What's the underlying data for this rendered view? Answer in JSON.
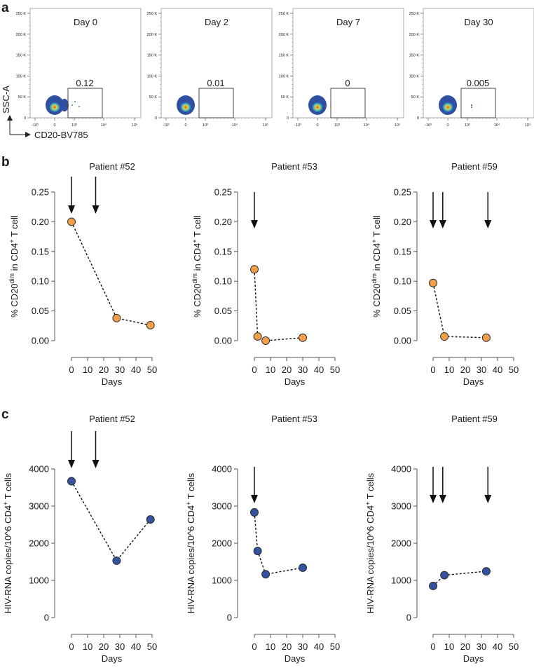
{
  "panel_labels": {
    "a": "a",
    "b": "b",
    "c": "c"
  },
  "panel_a": {
    "y_axis_label": "SSC-A",
    "x_axis_label": "CD20-BV785",
    "y_ticks": [
      "0",
      "50 K",
      "100 K",
      "150 K",
      "200 K",
      "250 K"
    ],
    "x_ticks": [
      "-10³",
      "0",
      "10³",
      "10⁴",
      "10⁵"
    ],
    "plots": [
      {
        "title": "Day 0",
        "gate_value": "0.12"
      },
      {
        "title": "Day 2",
        "gate_value": "0.01"
      },
      {
        "title": "Day 7",
        "gate_value": "0"
      },
      {
        "title": "Day 30",
        "gate_value": "0.005"
      }
    ],
    "colors": {
      "outer": "#2f4fa0",
      "mid": "#3fb6c8",
      "inner": "#e6d33a",
      "core": "#d9401f"
    }
  },
  "chart_data": [
    {
      "type": "line",
      "panel": "b",
      "title": "Patient #52",
      "xlabel": "Days",
      "ylabel_parts": [
        [
          "% CD20",
          false
        ],
        [
          "dim",
          true
        ],
        [
          " in CD4",
          false
        ],
        [
          "+",
          true
        ],
        [
          " T cell",
          false
        ]
      ],
      "xlim": [
        0,
        50
      ],
      "ylim": [
        0,
        0.25
      ],
      "x_ticks": [
        "0",
        "10",
        "20",
        "30",
        "40",
        "50"
      ],
      "y_ticks": [
        "0.00",
        "0.05",
        "0.10",
        "0.15",
        "0.20",
        "0.25"
      ],
      "x": [
        0,
        28,
        49
      ],
      "y": [
        0.2,
        0.038,
        0.026
      ],
      "arrows_days": [
        0,
        15
      ],
      "marker_color": "#f0a04b"
    },
    {
      "type": "line",
      "panel": "b",
      "title": "Patient #53",
      "xlabel": "Days",
      "ylabel_parts": [
        [
          "% CD20",
          false
        ],
        [
          "dim",
          true
        ],
        [
          " in CD4",
          false
        ],
        [
          "+",
          true
        ],
        [
          " T cell",
          false
        ]
      ],
      "xlim": [
        0,
        50
      ],
      "ylim": [
        0,
        0.25
      ],
      "x_ticks": [
        "0",
        "10",
        "20",
        "30",
        "40",
        "50"
      ],
      "y_ticks": [
        "0.00",
        "0.05",
        "0.10",
        "0.15",
        "0.20",
        "0.25"
      ],
      "x": [
        0,
        2,
        7,
        30
      ],
      "y": [
        0.12,
        0.007,
        0.0,
        0.005
      ],
      "arrows_days": [
        0
      ],
      "marker_color": "#f0a04b"
    },
    {
      "type": "line",
      "panel": "b",
      "title": "Patient #59",
      "xlabel": "Days",
      "ylabel_parts": [
        [
          "% CD20",
          false
        ],
        [
          "dim",
          true
        ],
        [
          " in CD4",
          false
        ],
        [
          "+",
          true
        ],
        [
          " T cell",
          false
        ]
      ],
      "xlim": [
        0,
        50
      ],
      "ylim": [
        0,
        0.25
      ],
      "x_ticks": [
        "0",
        "10",
        "20",
        "30",
        "40",
        "50"
      ],
      "y_ticks": [
        "0.00",
        "0.05",
        "0.10",
        "0.15",
        "0.20",
        "0.25"
      ],
      "x": [
        0,
        7,
        33
      ],
      "y": [
        0.097,
        0.007,
        0.005
      ],
      "arrows_days": [
        0,
        6,
        34
      ],
      "marker_color": "#f0a04b"
    },
    {
      "type": "line",
      "panel": "c",
      "title": "Patient #52",
      "xlabel": "Days",
      "ylabel_parts": [
        [
          "HIV-RNA copies/10^6 CD4",
          false
        ],
        [
          "+",
          true
        ],
        [
          " T cells",
          false
        ]
      ],
      "xlim": [
        0,
        50
      ],
      "ylim": [
        0,
        4000
      ],
      "x_ticks": [
        "0",
        "10",
        "20",
        "30",
        "40",
        "50"
      ],
      "y_ticks": [
        "0",
        "1000",
        "2000",
        "3000",
        "4000"
      ],
      "x": [
        0,
        28,
        49
      ],
      "y": [
        3670,
        1530,
        2640
      ],
      "arrows_days": [
        0,
        15
      ],
      "marker_color": "#34529e"
    },
    {
      "type": "line",
      "panel": "c",
      "title": "Patient #53",
      "xlabel": "Days",
      "ylabel_parts": [
        [
          "HIV-RNA copies/10^6 CD4",
          false
        ],
        [
          "+",
          true
        ],
        [
          " T cells",
          false
        ]
      ],
      "xlim": [
        0,
        50
      ],
      "ylim": [
        0,
        4000
      ],
      "x_ticks": [
        "0",
        "10",
        "20",
        "30",
        "40",
        "50"
      ],
      "y_ticks": [
        "0",
        "1000",
        "2000",
        "3000",
        "4000"
      ],
      "x": [
        0,
        2,
        7,
        30
      ],
      "y": [
        2830,
        1790,
        1165,
        1340
      ],
      "arrows_days": [
        0
      ],
      "marker_color": "#34529e"
    },
    {
      "type": "line",
      "panel": "c",
      "title": "Patient #59",
      "xlabel": "Days",
      "ylabel_parts": [
        [
          "HIV-RNA copies/10^6 CD4",
          false
        ],
        [
          "+",
          true
        ],
        [
          " T cells",
          false
        ]
      ],
      "xlim": [
        0,
        50
      ],
      "ylim": [
        0,
        4000
      ],
      "x_ticks": [
        "0",
        "10",
        "20",
        "30",
        "40",
        "50"
      ],
      "y_ticks": [
        "0",
        "1000",
        "2000",
        "3000",
        "4000"
      ],
      "x": [
        0,
        7,
        33
      ],
      "y": [
        850,
        1140,
        1245
      ],
      "arrows_days": [
        0,
        6,
        34
      ],
      "marker_color": "#34529e"
    }
  ]
}
